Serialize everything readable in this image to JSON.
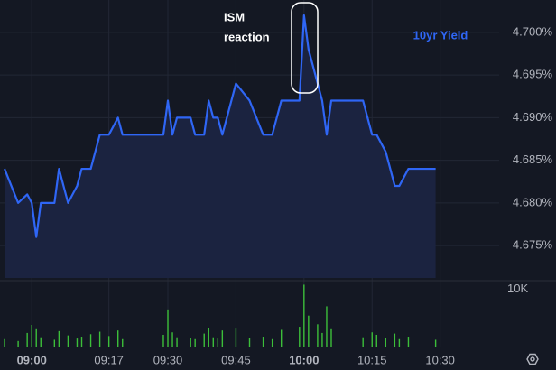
{
  "chart_data": {
    "type": "line",
    "annotation": [
      "ISM",
      "reaction"
    ],
    "x": [
      "08:54",
      "08:57",
      "08:59",
      "09:00",
      "09:01",
      "09:02",
      "09:05",
      "09:06",
      "09:08",
      "09:10",
      "09:11",
      "09:13",
      "09:15",
      "09:17",
      "09:19",
      "09:20",
      "09:29",
      "09:30",
      "09:31",
      "09:32",
      "09:35",
      "09:36",
      "09:38",
      "09:39",
      "09:40",
      "09:41",
      "09:42",
      "09:45",
      "09:48",
      "09:51",
      "09:53",
      "09:55",
      "09:59",
      "10:00",
      "10:01",
      "10:03",
      "10:04",
      "10:05",
      "10:06",
      "10:13",
      "10:15",
      "10:16",
      "10:18",
      "10:20",
      "10:21",
      "10:23",
      "10:29"
    ],
    "series": [
      {
        "name": "10yr Yield",
        "color": "#2f66f5",
        "values": [
          4.684,
          4.68,
          4.681,
          4.68,
          4.676,
          4.68,
          4.68,
          4.684,
          4.68,
          4.682,
          4.684,
          4.684,
          4.688,
          4.688,
          4.69,
          4.688,
          4.688,
          4.692,
          4.688,
          4.69,
          4.69,
          4.688,
          4.688,
          4.692,
          4.69,
          4.69,
          4.688,
          4.694,
          4.692,
          4.688,
          4.688,
          4.692,
          4.692,
          4.702,
          4.698,
          4.694,
          4.692,
          4.688,
          4.692,
          4.692,
          4.688,
          4.688,
          4.686,
          4.682,
          4.682,
          4.684,
          4.684
        ]
      }
    ],
    "volume": {
      "color": "#3cbf3a",
      "values": [
        1200,
        900,
        2200,
        3500,
        2800,
        1500,
        1100,
        2500,
        1800,
        1300,
        1600,
        2000,
        2400,
        1700,
        2600,
        1200,
        1900,
        6000,
        2300,
        1500,
        1400,
        1200,
        2100,
        3000,
        1500,
        1300,
        2600,
        2900,
        1400,
        1600,
        1200,
        2700,
        3200,
        10000,
        5000,
        3600,
        2200,
        6500,
        2800,
        1500,
        2300,
        1900,
        1400,
        2100,
        1200,
        1600,
        1100
      ],
      "ylim": [
        0,
        10500
      ],
      "yticks": [
        {
          "value": 10000,
          "label": "10K"
        }
      ]
    },
    "xlim": [
      "08:53",
      "10:43"
    ],
    "xticks": [
      "09:00",
      "09:17",
      "09:30",
      "09:45",
      "10:00",
      "10:15",
      "10:30"
    ],
    "ylim": [
      4.6712,
      4.7038
    ],
    "yticks": [
      {
        "value": 4.675,
        "label": "4.675%"
      },
      {
        "value": 4.68,
        "label": "4.680%"
      },
      {
        "value": 4.685,
        "label": "4.685%"
      },
      {
        "value": 4.69,
        "label": "4.690%"
      },
      {
        "value": 4.695,
        "label": "4.695%"
      },
      {
        "value": 4.7,
        "label": "4.700%"
      }
    ],
    "grid": true
  }
}
